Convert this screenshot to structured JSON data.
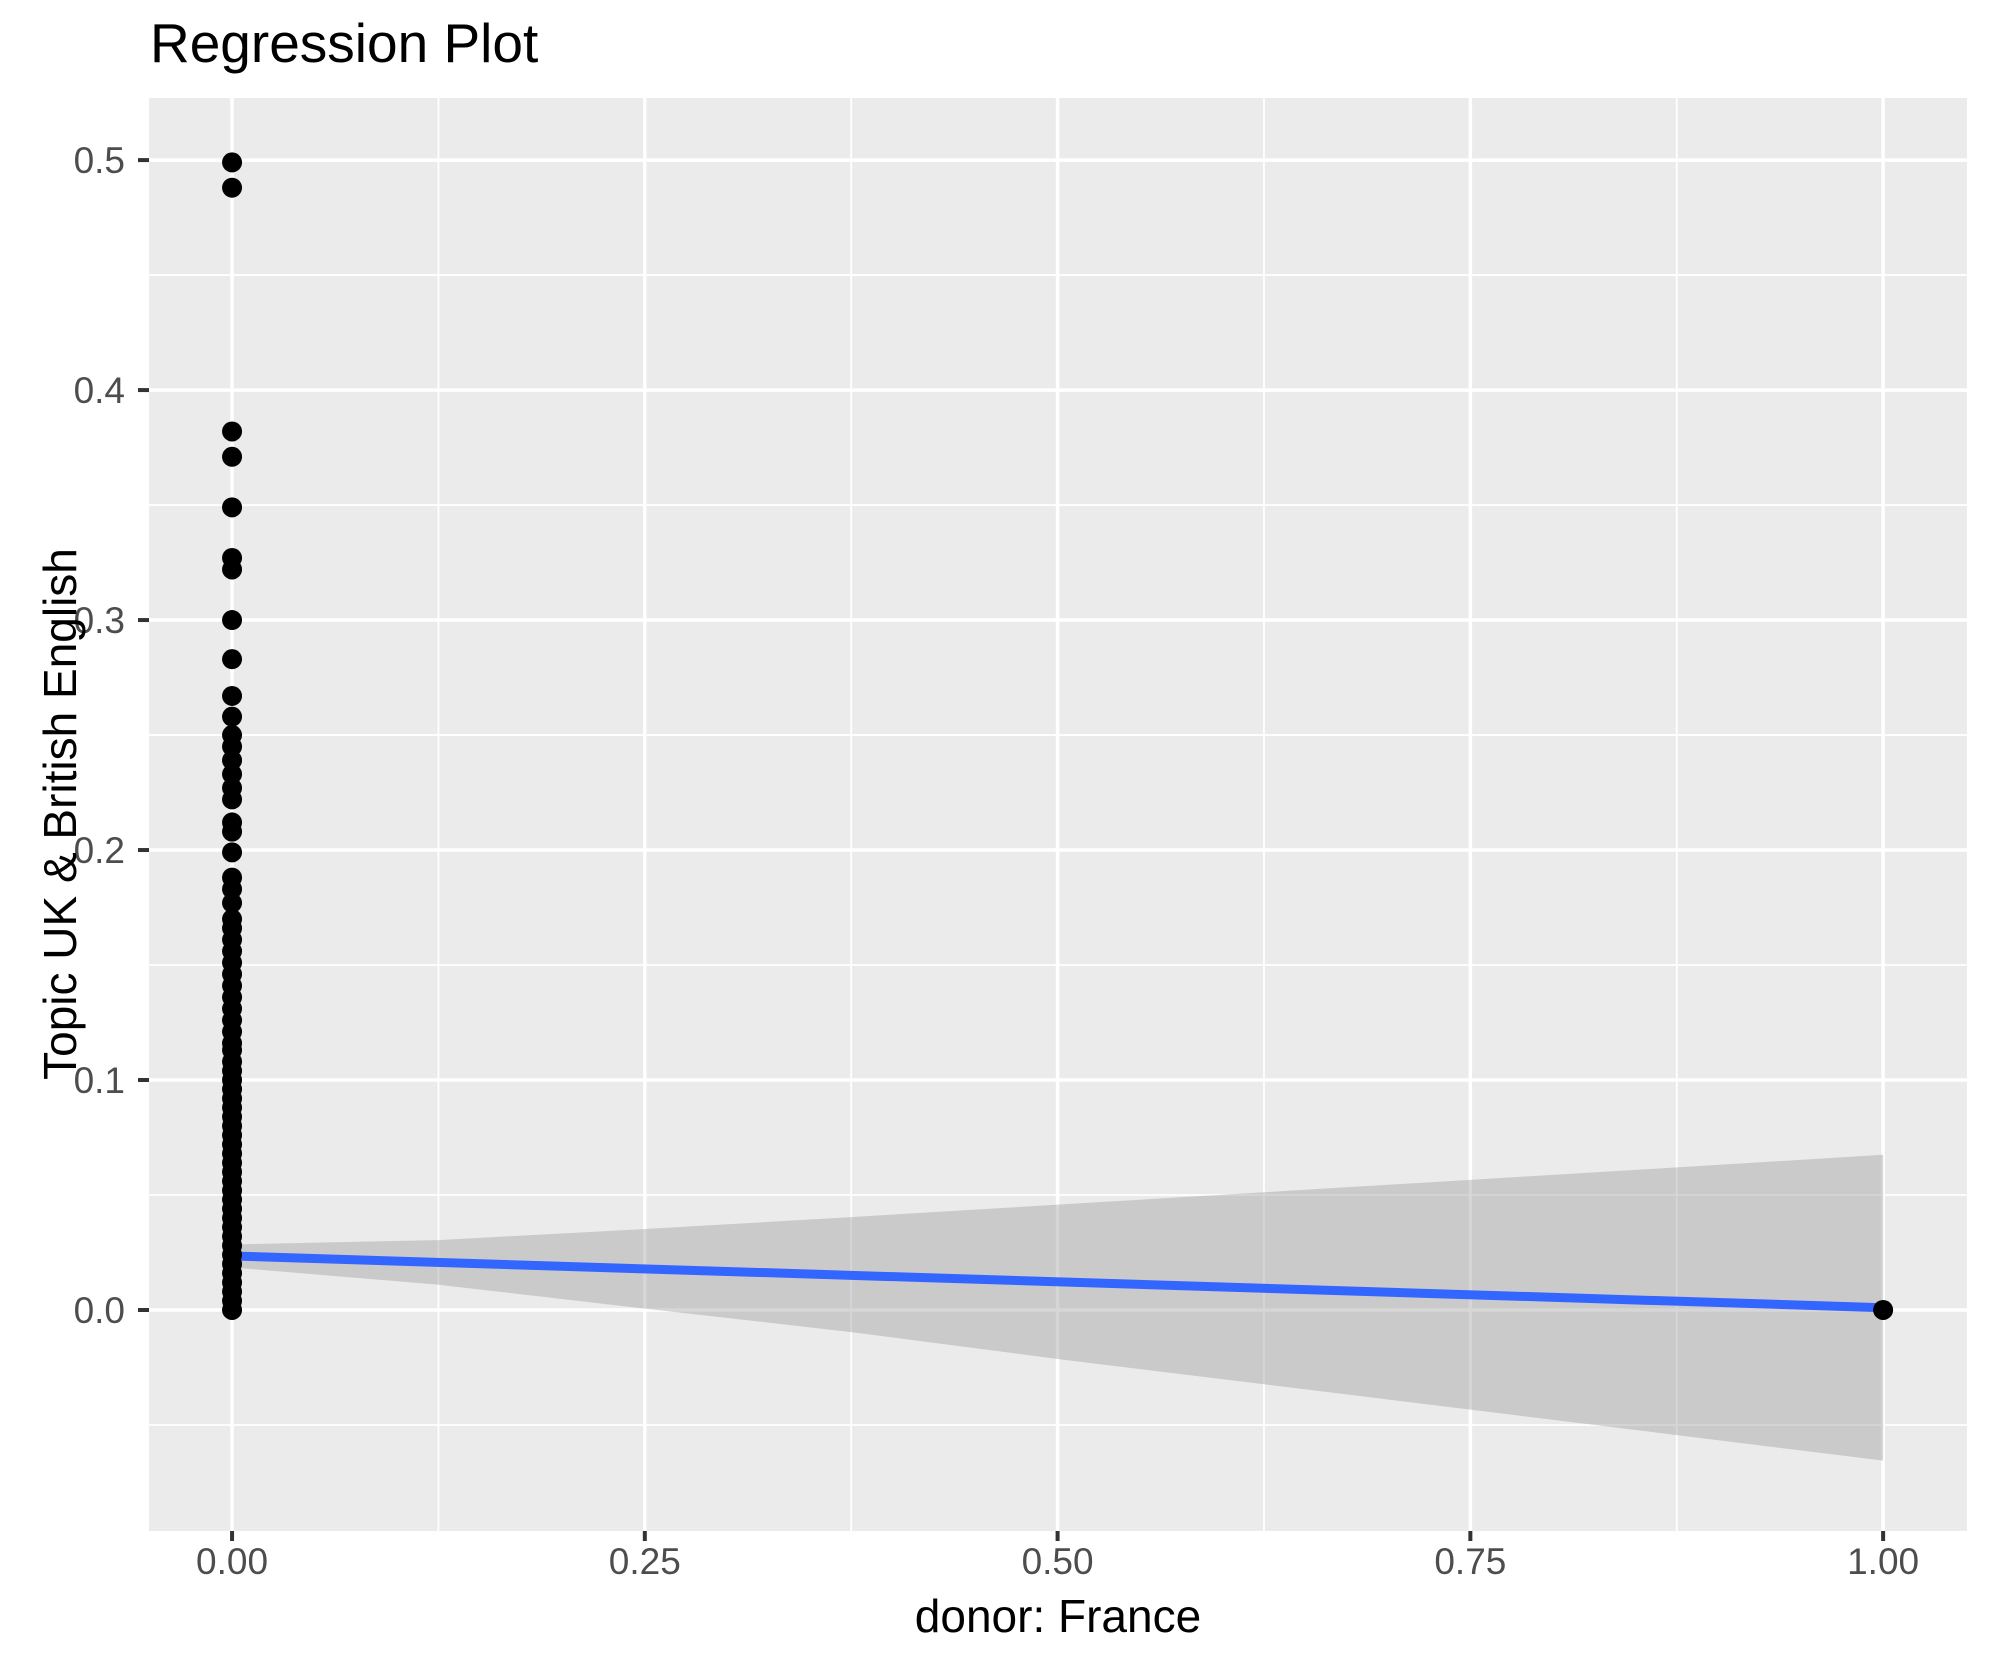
{
  "chart_data": {
    "type": "scatter",
    "title": "Regression Plot",
    "xlabel": "donor: France",
    "ylabel": "Topic UK & British English",
    "x_axis": {
      "lim": [
        -0.0503,
        1.0508
      ],
      "ticks": [
        {
          "value": 0.0,
          "label": "0.00"
        },
        {
          "value": 0.25,
          "label": "0.25"
        },
        {
          "value": 0.5,
          "label": "0.50"
        },
        {
          "value": 0.75,
          "label": "0.75"
        },
        {
          "value": 1.0,
          "label": "1.00"
        }
      ],
      "minor": [
        0.125,
        0.375,
        0.625,
        0.875
      ]
    },
    "y_axis": {
      "lim": [
        -0.0961,
        0.527
      ],
      "ticks": [
        {
          "value": 0.0,
          "label": "0.0"
        },
        {
          "value": 0.1,
          "label": "0.1"
        },
        {
          "value": 0.2,
          "label": "0.2"
        },
        {
          "value": 0.3,
          "label": "0.3"
        },
        {
          "value": 0.4,
          "label": "0.4"
        },
        {
          "value": 0.5,
          "label": "0.5"
        }
      ],
      "minor": [
        -0.05,
        0.05,
        0.15,
        0.25,
        0.35,
        0.45
      ]
    },
    "points": [
      [
        0,
        0.499
      ],
      [
        0,
        0.488
      ],
      [
        0,
        0.382
      ],
      [
        0,
        0.371
      ],
      [
        0,
        0.349
      ],
      [
        0,
        0.327
      ],
      [
        0,
        0.322
      ],
      [
        0,
        0.3
      ],
      [
        0,
        0.283
      ],
      [
        0,
        0.267
      ],
      [
        0,
        0.258
      ],
      [
        0,
        0.25
      ],
      [
        0,
        0.245
      ],
      [
        0,
        0.239
      ],
      [
        0,
        0.233
      ],
      [
        0,
        0.227
      ],
      [
        0,
        0.222
      ],
      [
        0,
        0.212
      ],
      [
        0,
        0.208
      ],
      [
        0,
        0.199
      ],
      [
        0,
        0.188
      ],
      [
        0,
        0.183
      ],
      [
        0,
        0.177
      ],
      [
        0,
        0.17
      ],
      [
        0,
        0.166
      ],
      [
        0,
        0.161
      ],
      [
        0,
        0.156
      ],
      [
        0,
        0.151
      ],
      [
        0,
        0.146
      ],
      [
        0,
        0.141
      ],
      [
        0,
        0.136
      ],
      [
        0,
        0.131
      ],
      [
        0,
        0.126
      ],
      [
        0,
        0.121
      ],
      [
        0,
        0.116
      ],
      [
        0,
        0.113
      ],
      [
        0,
        0.108
      ],
      [
        0,
        0.104
      ],
      [
        0,
        0.1
      ],
      [
        0,
        0.096
      ],
      [
        0,
        0.092
      ],
      [
        0,
        0.088
      ],
      [
        0,
        0.084
      ],
      [
        0,
        0.08
      ],
      [
        0,
        0.076
      ],
      [
        0,
        0.072
      ],
      [
        0,
        0.068
      ],
      [
        0,
        0.064
      ],
      [
        0,
        0.06
      ],
      [
        0,
        0.056
      ],
      [
        0,
        0.052
      ],
      [
        0,
        0.048
      ],
      [
        0,
        0.044
      ],
      [
        0,
        0.04
      ],
      [
        0,
        0.036
      ],
      [
        0,
        0.032
      ],
      [
        0,
        0.028
      ],
      [
        0,
        0.024
      ],
      [
        0,
        0.02
      ],
      [
        0,
        0.016
      ],
      [
        0,
        0.012
      ],
      [
        0,
        0.008
      ],
      [
        0,
        0.004
      ],
      [
        0,
        0.0
      ],
      [
        1,
        0.0
      ]
    ],
    "regression_line": {
      "x": [
        0,
        1
      ],
      "y": [
        0.0235,
        0.001
      ]
    },
    "confidence_band": {
      "x": [
        0,
        0.125,
        0.25,
        0.375,
        0.5,
        0.625,
        0.75,
        0.875,
        1
      ],
      "upper": [
        0.0285,
        0.0304,
        0.0352,
        0.0404,
        0.0458,
        0.0512,
        0.0566,
        0.062,
        0.0675
      ],
      "lower": [
        0.0185,
        0.011,
        0.0006,
        -0.0096,
        -0.0213,
        -0.0323,
        -0.0433,
        -0.0544,
        -0.0655
      ]
    },
    "style": {
      "panel_fill": "#EBEBEB",
      "grid_color": "#FFFFFF",
      "point_color": "#000000",
      "line_color": "#3366FF",
      "band_color": "rgba(153,153,153,0.4)",
      "tick_color": "#333333",
      "tick_label_color": "#4D4D4D",
      "title_color": "#000000"
    }
  }
}
